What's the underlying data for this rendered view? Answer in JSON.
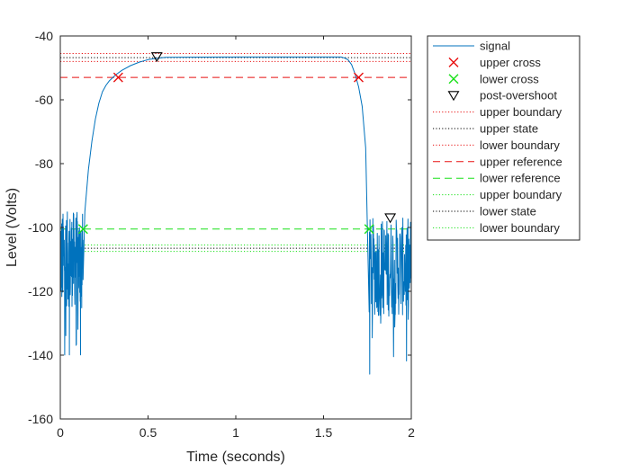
{
  "chart_data": {
    "type": "line",
    "title": "",
    "xlabel": "Time (seconds)",
    "ylabel": "Level (Volts)",
    "xlim": [
      0,
      2
    ],
    "ylim": [
      -160,
      -40
    ],
    "xticks": [
      0,
      0.5,
      1,
      1.5,
      2
    ],
    "xtick_labels": [
      "0",
      "0.5",
      "1",
      "1.5",
      "2"
    ],
    "yticks": [
      -160,
      -140,
      -120,
      -100,
      -80,
      -60,
      -40
    ],
    "ytick_labels": [
      "-160",
      "-140",
      "-120",
      "-100",
      "-80",
      "-60",
      "-40"
    ],
    "grid": false,
    "legend_position": "outside-top-right",
    "series": [
      {
        "name": "signal",
        "style": "line",
        "color": "#0072BD",
        "x": [
          0,
          0.12,
          0.14,
          0.16,
          0.18,
          0.2,
          0.22,
          0.24,
          0.26,
          0.28,
          0.3,
          0.32,
          0.35,
          0.4,
          0.45,
          0.5,
          0.55,
          0.6,
          1.0,
          1.6,
          1.62,
          1.64,
          1.66,
          1.68,
          1.7,
          1.72,
          1.74,
          1.76,
          2.0
        ],
        "y": [
          -108,
          -108,
          -95,
          -82,
          -73,
          -66,
          -61,
          -57.5,
          -55.5,
          -54,
          -53,
          -52,
          -50.8,
          -49.3,
          -48.2,
          -47.4,
          -47,
          -46.7,
          -46.6,
          -46.6,
          -46.9,
          -47.5,
          -49,
          -52,
          -56,
          -62,
          -75,
          -95,
          -108
        ],
        "noise": [
          {
            "x_range": [
              0,
              0.13
            ],
            "y_range": [
              -125,
              -95
            ],
            "spike_min": -145
          },
          {
            "x_range": [
              1.76,
              2.0
            ],
            "y_range": [
              -128,
              -97
            ],
            "spike_min": -148
          }
        ]
      },
      {
        "name": "upper cross",
        "style": "x",
        "color": "#E81010",
        "x": [
          0.33,
          1.7
        ],
        "y": [
          -53,
          -53
        ]
      },
      {
        "name": "lower cross",
        "style": "x",
        "color": "#19E019",
        "x": [
          0.13,
          1.76
        ],
        "y": [
          -100.5,
          -100.5
        ]
      },
      {
        "name": "post-overshoot",
        "style": "triangle-down",
        "color": "#000000",
        "x": [
          0.55,
          1.88
        ],
        "y": [
          -46.5,
          -97
        ]
      },
      {
        "name": "upper boundary",
        "style": "dotted",
        "color": "#E81010",
        "y": -45.5
      },
      {
        "name": "upper state",
        "style": "dotted",
        "color": "#000000",
        "y": -46.8
      },
      {
        "name": "lower boundary",
        "style": "dotted",
        "color": "#E81010",
        "y": -48
      },
      {
        "name": "upper reference",
        "style": "dashed",
        "color": "#E81010",
        "y": -53
      },
      {
        "name": "lower reference",
        "style": "dashed",
        "color": "#19E019",
        "y": -100.5
      },
      {
        "name": "upper boundary",
        "style": "dotted",
        "color": "#19E019",
        "y": -105.5
      },
      {
        "name": "lower state",
        "style": "dotted",
        "color": "#000000",
        "y": -106.5
      },
      {
        "name": "lower boundary",
        "style": "dotted",
        "color": "#19E019",
        "y": -107.5
      }
    ]
  }
}
